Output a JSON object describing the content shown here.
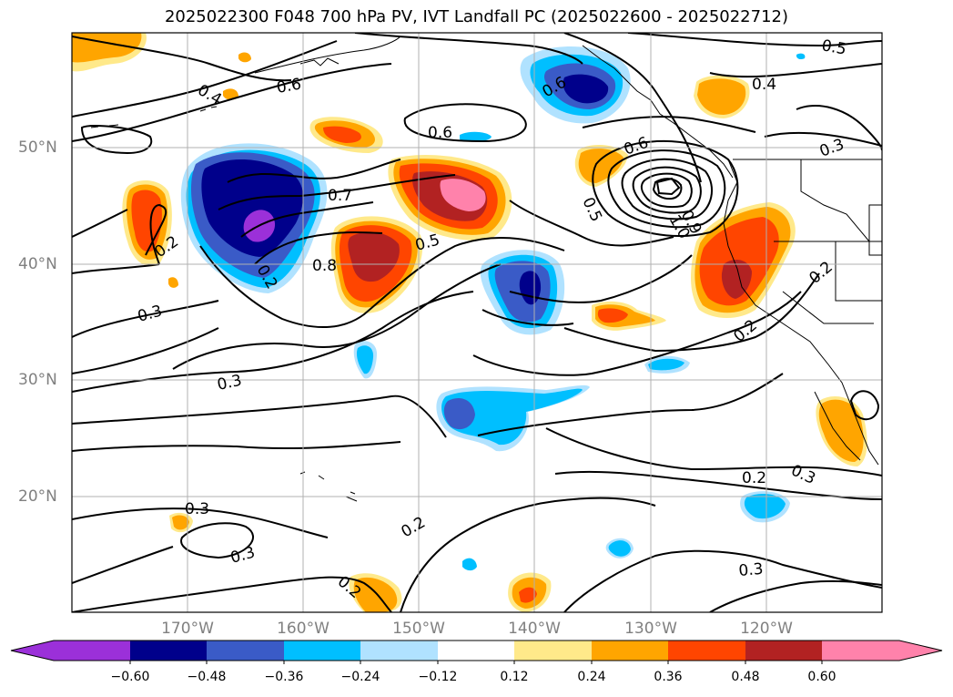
{
  "title": "2025022300 F048 700 hPa PV, IVT Landfall PC (2025022600 - 2025022712)",
  "lat_labels": [
    "50°N",
    "40°N",
    "30°N",
    "20°N"
  ],
  "lon_labels": [
    "170°W",
    "160°W",
    "150°W",
    "140°W",
    "130°W",
    "120°W"
  ],
  "contour_labels": [
    "0.4",
    "0.6",
    "0.6",
    "0.6",
    "0.5",
    "0.4",
    "0.3",
    "0.7",
    "0.6",
    "0.2",
    "0.8",
    "0.5",
    "0.5",
    "0.9",
    "1.0",
    "0.3",
    "0.3",
    "0.2",
    "0.2",
    "0.3",
    "0.2",
    "0.3",
    "0.3",
    "0.2",
    "0.2",
    "0.3",
    "0.2"
  ],
  "colorbar": {
    "ticks": [
      "−0.60",
      "−0.48",
      "−0.36",
      "−0.24",
      "−0.12",
      "0.12",
      "0.24",
      "0.36",
      "0.48",
      "0.60"
    ],
    "colors": [
      "#9b30d9",
      "#00008b",
      "#3a5bc7",
      "#00bfff",
      "#b0e2ff",
      "#ffffff",
      "#ffe98a",
      "#ffa500",
      "#ff4500",
      "#b22222",
      "#ff82ab"
    ]
  },
  "palette": {
    "purple": "#9b30d9",
    "navy": "#00008b",
    "royal": "#3a5bc7",
    "sky": "#00bfff",
    "lightblue": "#b0e2ff",
    "yellow": "#ffe98a",
    "orange": "#ffa500",
    "redorange": "#ff4500",
    "firebrick": "#b22222",
    "pink": "#ff82ab"
  }
}
